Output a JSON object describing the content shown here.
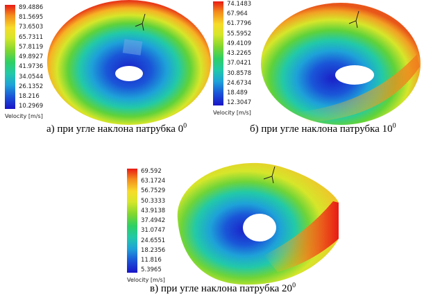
{
  "panels": [
    {
      "legend_ticks": [
        "89.4886",
        "81.5695",
        "73.6503",
        "65.7311",
        "57.8119",
        "49.8927",
        "41.9736",
        "34.0544",
        "26.1352",
        "18.216",
        "10.2969"
      ],
      "legend_title": "Velocity [m/s]",
      "caption_prefix": "а) при угле наклона патрубка 0",
      "caption_sup": "0"
    },
    {
      "legend_ticks": [
        "74.1483",
        "67.964",
        "61.7796",
        "55.5952",
        "49.4109",
        "43.2265",
        "37.0421",
        "30.8578",
        "24.6734",
        "18.489",
        "12.3047"
      ],
      "legend_title": "Velocity [m/s]",
      "caption_prefix": "б) при угле наклона патрубка 10",
      "caption_sup": "0"
    },
    {
      "legend_ticks": [
        "69.592",
        "63.1724",
        "56.7529",
        "50.3333",
        "43.9138",
        "37.4942",
        "31.0747",
        "24.6551",
        "18.2356",
        "11.816",
        "5.3965"
      ],
      "legend_title": "Velocity [m/s]",
      "caption_prefix": "в) при угле наклона патрубка 20",
      "caption_sup": "0"
    }
  ],
  "colors": {
    "red": "#e81a14",
    "orange": "#f48a1c",
    "yellow": "#f7dc2a",
    "green": "#3fd03c",
    "cyan": "#22c9a8",
    "blue": "#1a56d8",
    "deep_blue": "#1a14c8"
  },
  "icons": [
    "axis-triad-icon"
  ]
}
